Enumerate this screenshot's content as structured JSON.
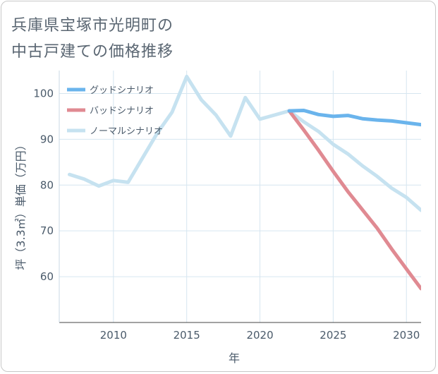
{
  "title_lines": [
    "兵庫県宝塚市光明町の",
    "中古戸建ての価格推移"
  ],
  "chart_data": {
    "type": "line",
    "xlabel": "年",
    "ylabel": "坪（3.3㎡）単価（万円）",
    "xlim": [
      2006.3,
      2031
    ],
    "ylim": [
      50,
      105
    ],
    "x_ticks": [
      2010,
      2015,
      2020,
      2025,
      2030
    ],
    "y_ticks": [
      60,
      70,
      80,
      90,
      100
    ],
    "grid": true,
    "legend_position": "top-left",
    "series": [
      {
        "name": "グッドシナリオ",
        "color": "#6ab4ec",
        "x": [
          2022,
          2023,
          2024,
          2025,
          2026,
          2027,
          2028,
          2029,
          2030,
          2031
        ],
        "values": [
          96.2,
          96.3,
          95.4,
          95.0,
          95.2,
          94.5,
          94.2,
          94.0,
          93.6,
          93.2
        ]
      },
      {
        "name": "バッドシナリオ",
        "color": "#e08a92",
        "x": [
          2022,
          2023,
          2024,
          2025,
          2026,
          2027,
          2028,
          2029,
          2030,
          2031
        ],
        "values": [
          96.2,
          92.0,
          87.6,
          83.0,
          78.6,
          74.6,
          70.6,
          66.0,
          61.7,
          57.4
        ]
      },
      {
        "name": "ノーマルシナリオ",
        "color": "#c6e2f0",
        "x": [
          2007,
          2008,
          2009,
          2010,
          2011,
          2012,
          2013,
          2014,
          2015,
          2016,
          2017,
          2018,
          2019,
          2020,
          2021,
          2022,
          2023,
          2024,
          2025,
          2026,
          2027,
          2028,
          2029,
          2030,
          2031
        ],
        "values": [
          82.3,
          81.3,
          79.8,
          81.0,
          80.6,
          86.0,
          91.4,
          95.9,
          103.7,
          98.6,
          95.3,
          90.7,
          99.1,
          94.4,
          95.3,
          96.2,
          93.8,
          91.7,
          88.9,
          86.8,
          84.2,
          81.9,
          79.3,
          77.3,
          74.5
        ]
      }
    ]
  }
}
